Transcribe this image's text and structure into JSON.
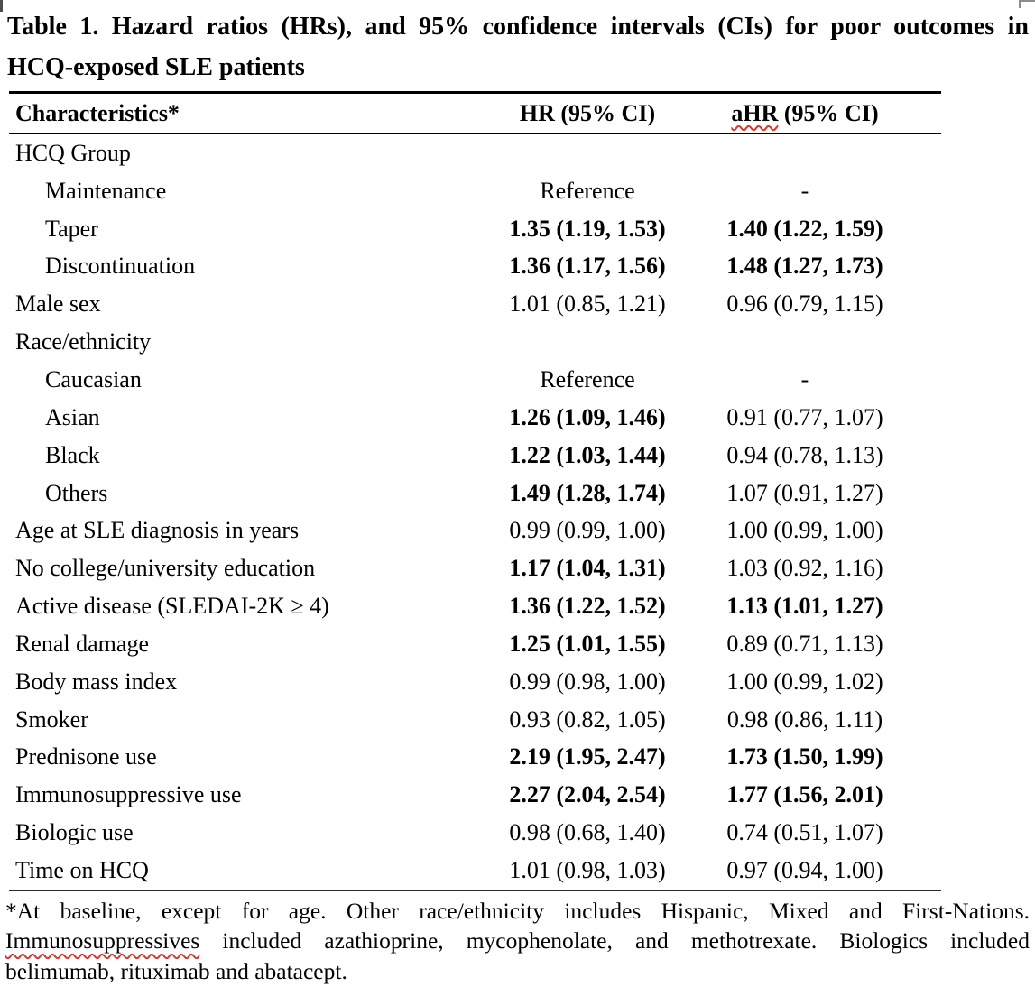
{
  "page": {
    "title_line1": "Table 1. Hazard ratios (HRs), and 95% confidence intervals (CIs) for poor outcomes in",
    "title_line2": "HCQ-exposed SLE patients"
  },
  "table": {
    "columns": {
      "characteristics": "Characteristics*",
      "hr": "HR (95% CI)",
      "ahr_word": "aHR",
      "ahr_rest": " (95% CI)"
    },
    "rows": [
      {
        "label": "HCQ Group",
        "indent": false,
        "hr": "",
        "ahr": "",
        "hr_bold": false,
        "ahr_bold": false
      },
      {
        "label": "Maintenance",
        "indent": true,
        "hr": "Reference",
        "ahr": "-",
        "hr_bold": false,
        "ahr_bold": false
      },
      {
        "label": "Taper",
        "indent": true,
        "hr": "1.35 (1.19, 1.53)",
        "ahr": "1.40 (1.22, 1.59)",
        "hr_bold": true,
        "ahr_bold": true
      },
      {
        "label": "Discontinuation",
        "indent": true,
        "hr": "1.36 (1.17, 1.56)",
        "ahr": "1.48 (1.27, 1.73)",
        "hr_bold": true,
        "ahr_bold": true
      },
      {
        "label": "Male sex",
        "indent": false,
        "hr": "1.01 (0.85, 1.21)",
        "ahr": "0.96 (0.79, 1.15)",
        "hr_bold": false,
        "ahr_bold": false
      },
      {
        "label": "Race/ethnicity",
        "indent": false,
        "hr": "",
        "ahr": "",
        "hr_bold": false,
        "ahr_bold": false
      },
      {
        "label": "Caucasian",
        "indent": true,
        "hr": "Reference",
        "ahr": "-",
        "hr_bold": false,
        "ahr_bold": false
      },
      {
        "label": "Asian",
        "indent": true,
        "hr": "1.26 (1.09, 1.46)",
        "ahr": "0.91 (0.77, 1.07)",
        "hr_bold": true,
        "ahr_bold": false
      },
      {
        "label": "Black",
        "indent": true,
        "hr": "1.22 (1.03, 1.44)",
        "ahr": "0.94 (0.78, 1.13)",
        "hr_bold": true,
        "ahr_bold": false
      },
      {
        "label": "Others",
        "indent": true,
        "hr": "1.49 (1.28, 1.74)",
        "ahr": "1.07 (0.91, 1.27)",
        "hr_bold": true,
        "ahr_bold": false
      },
      {
        "label": "Age at SLE diagnosis in years",
        "indent": false,
        "hr": "0.99 (0.99, 1.00)",
        "ahr": "1.00 (0.99, 1.00)",
        "hr_bold": false,
        "ahr_bold": false
      },
      {
        "label": "No college/university education",
        "indent": false,
        "hr": "1.17 (1.04, 1.31)",
        "ahr": "1.03 (0.92, 1.16)",
        "hr_bold": true,
        "ahr_bold": false
      },
      {
        "label": "Active disease (SLEDAI-2K ≥ 4)",
        "indent": false,
        "hr": "1.36 (1.22, 1.52)",
        "ahr": "1.13 (1.01, 1.27)",
        "hr_bold": true,
        "ahr_bold": true
      },
      {
        "label": "Renal damage",
        "indent": false,
        "hr": "1.25 (1.01, 1.55)",
        "ahr": "0.89 (0.71, 1.13)",
        "hr_bold": true,
        "ahr_bold": false
      },
      {
        "label": "Body mass index",
        "indent": false,
        "hr": "0.99 (0.98, 1.00)",
        "ahr": "1.00 (0.99, 1.02)",
        "hr_bold": false,
        "ahr_bold": false
      },
      {
        "label": "Smoker",
        "indent": false,
        "hr": "0.93 (0.82, 1.05)",
        "ahr": "0.98 (0.86, 1.11)",
        "hr_bold": false,
        "ahr_bold": false
      },
      {
        "label": "Prednisone use",
        "indent": false,
        "hr": "2.19 (1.95, 2.47)",
        "ahr": "1.73 (1.50, 1.99)",
        "hr_bold": true,
        "ahr_bold": true
      },
      {
        "label": "Immunosuppressive use",
        "indent": false,
        "hr": "2.27 (2.04, 2.54)",
        "ahr": "1.77 (1.56, 2.01)",
        "hr_bold": true,
        "ahr_bold": true
      },
      {
        "label": "Biologic use",
        "indent": false,
        "hr": "0.98 (0.68, 1.40)",
        "ahr": "0.74 (0.51, 1.07)",
        "hr_bold": false,
        "ahr_bold": false
      },
      {
        "label": "Time on HCQ",
        "indent": false,
        "hr": "1.01 (0.98, 1.03)",
        "ahr": "0.97 (0.94, 1.00)",
        "hr_bold": false,
        "ahr_bold": false
      }
    ]
  },
  "footnote": {
    "line1": "*At baseline, except for age. Other race/ethnicity includes Hispanic, Mixed and First-Nations.",
    "line2_misspelled": "Immunosuppressives",
    "line2_rest": " included azathioprine, mycophenolate, and methotrexate. Biologics included",
    "line3": "belimumab, rituximab and abatacept."
  },
  "colors": {
    "text": "#000000",
    "rule": "#000000",
    "spellcheck_underline": "#d23a32",
    "background": "#ffffff"
  }
}
